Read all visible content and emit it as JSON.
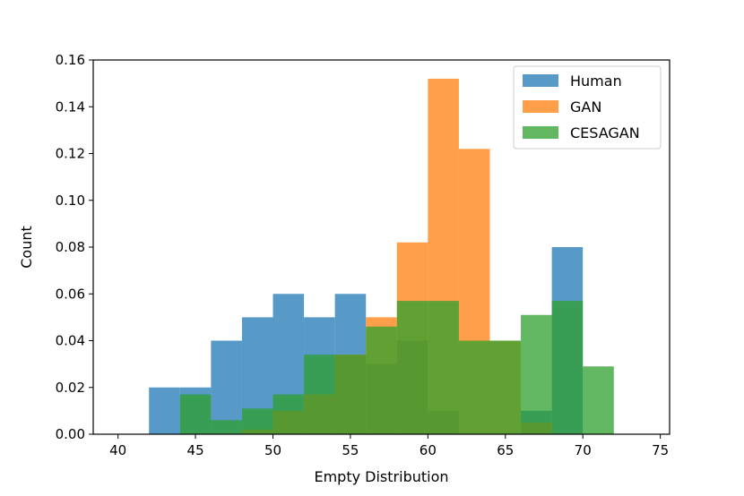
{
  "chart_data": {
    "type": "histogram",
    "title": "",
    "xlabel": "Empty Distribution",
    "ylabel": "Count",
    "xlim": [
      38.4,
      75.6
    ],
    "ylim": [
      0,
      0.16
    ],
    "xticks": [
      40,
      45,
      50,
      55,
      60,
      65,
      70,
      75
    ],
    "xtick_labels": [
      "40",
      "45",
      "50",
      "55",
      "60",
      "65",
      "70",
      "75"
    ],
    "yticks": [
      0.0,
      0.02,
      0.04,
      0.06,
      0.08,
      0.1,
      0.12,
      0.14,
      0.16
    ],
    "ytick_labels": [
      "0.00",
      "0.02",
      "0.04",
      "0.06",
      "0.08",
      "0.10",
      "0.12",
      "0.14",
      "0.16"
    ],
    "legend_position": "upper-right",
    "series": [
      {
        "name": "Human",
        "color": "#1f77b4",
        "bin_edges": [
          42,
          44,
          46,
          48,
          50,
          52,
          54,
          56,
          58,
          60,
          62,
          64,
          66,
          68,
          70
        ],
        "values": [
          0.02,
          0.02,
          0.04,
          0.05,
          0.06,
          0.05,
          0.06,
          0.03,
          0.04,
          0.01,
          0.0,
          0.0,
          0.01,
          0.08
        ]
      },
      {
        "name": "GAN",
        "color": "#ff7f0e",
        "bin_edges": [
          48,
          50,
          52,
          54,
          56,
          58,
          60,
          62,
          64,
          66,
          68
        ],
        "values": [
          0.002,
          0.01,
          0.017,
          0.034,
          0.05,
          0.082,
          0.152,
          0.122,
          0.04,
          0.005
        ]
      },
      {
        "name": "CESAGAN",
        "color": "#2ca02c",
        "bin_edges": [
          44,
          46,
          48,
          50,
          52,
          54,
          56,
          58,
          60,
          62,
          64,
          66,
          68,
          70,
          72
        ],
        "values": [
          0.017,
          0.006,
          0.011,
          0.017,
          0.034,
          0.034,
          0.046,
          0.057,
          0.057,
          0.04,
          0.04,
          0.051,
          0.057,
          0.029
        ]
      }
    ]
  }
}
